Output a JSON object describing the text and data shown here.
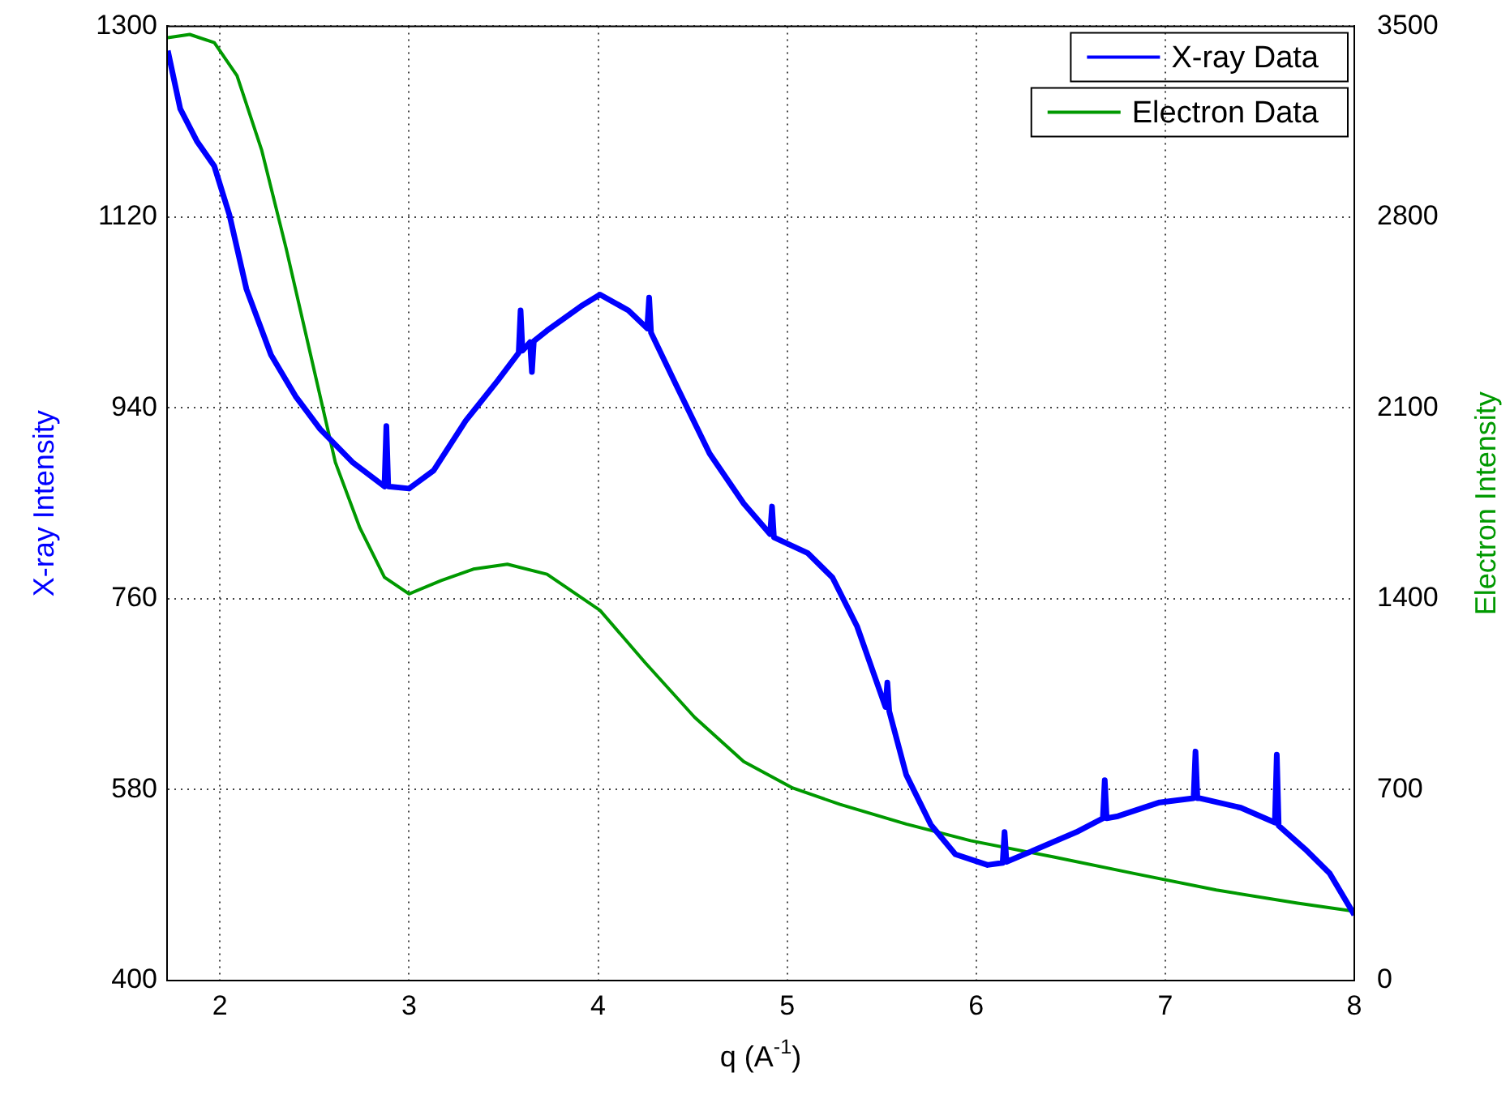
{
  "chart_data": {
    "type": "line",
    "xlabel": "q (A$^{-1}$)",
    "ylabel": "X-ray Intensity",
    "y2label": "Electron Intensity",
    "xlim": [
      1.72,
      8
    ],
    "xticks": [
      2,
      3,
      4,
      5,
      6,
      7,
      8
    ],
    "ylim": [
      400,
      1300
    ],
    "yticks": [
      400,
      580,
      760,
      940,
      1120,
      1300
    ],
    "y2lim": [
      0,
      3500
    ],
    "y2ticks": [
      0,
      700,
      1400,
      2100,
      2800,
      3500
    ],
    "grid": true,
    "legend": "top right",
    "series": [
      {
        "name": "X-ray Data",
        "color": "#0000ff",
        "x": [
          1.724,
          1.79,
          1.88,
          1.97,
          2.05,
          2.14,
          2.27,
          2.4,
          2.53,
          2.7,
          2.87,
          2.88,
          2.89,
          3.0,
          3.13,
          3.3,
          3.47,
          3.58,
          3.59,
          3.6,
          3.64,
          3.65,
          3.66,
          3.73,
          3.91,
          4.01,
          4.16,
          4.26,
          4.27,
          4.28,
          4.42,
          4.59,
          4.77,
          4.91,
          4.92,
          4.93,
          5.11,
          5.24,
          5.37,
          5.52,
          5.53,
          5.54,
          5.63,
          5.76,
          5.89,
          6.06,
          6.14,
          6.15,
          6.16,
          6.32,
          6.53,
          6.67,
          6.68,
          6.69,
          6.75,
          6.97,
          7.15,
          7.16,
          7.17,
          7.18,
          7.4,
          7.58,
          7.59,
          7.6,
          7.74,
          7.87,
          8.0
        ],
        "values": [
          1277,
          1222,
          1191,
          1168,
          1122,
          1052,
          990,
          951,
          920,
          889,
          866,
          923,
          866,
          864,
          881,
          928,
          966,
          992,
          1032,
          994,
          1002,
          974,
          1003,
          1013,
          1036,
          1047,
          1032,
          1015,
          1044,
          1011,
          959,
          897,
          850,
          821,
          847,
          818,
          803,
          780,
          734,
          658,
          681,
          654,
          594,
          547,
          519,
          509,
          511,
          540,
          512,
          524,
          540,
          553,
          589,
          553,
          555,
          568,
          572,
          616,
          572,
          572,
          563,
          549,
          613,
          546,
          524,
          501,
          462
        ]
      },
      {
        "name": "Electron Data",
        "color": "#009900",
        "axis": "y2",
        "x": [
          1.724,
          1.84,
          1.97,
          2.09,
          2.22,
          2.35,
          2.48,
          2.61,
          2.74,
          2.87,
          3.0,
          3.17,
          3.34,
          3.52,
          3.73,
          4.01,
          4.25,
          4.51,
          4.77,
          5.03,
          5.28,
          5.63,
          5.97,
          6.41,
          6.84,
          7.27,
          7.7,
          8.0
        ],
        "values": [
          3458,
          3470,
          3440,
          3319,
          3047,
          2685,
          2293,
          1901,
          1660,
          1479,
          1418,
          1467,
          1509,
          1527,
          1490,
          1358,
          1165,
          966,
          803,
          706,
          646,
          574,
          513,
          453,
          392,
          332,
          284,
          254
        ]
      }
    ]
  }
}
